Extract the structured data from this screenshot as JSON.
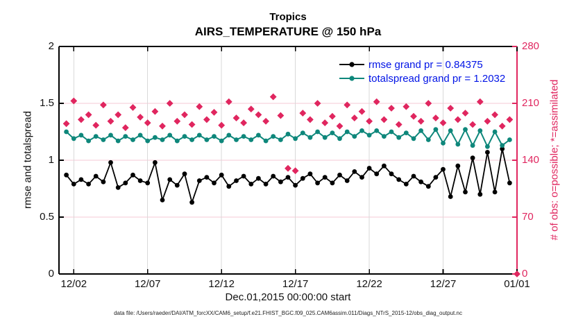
{
  "figure": {
    "title_line1": "Tropics",
    "title_line2": "AIRS_TEMPERATURE @ 150 hPa",
    "xlabel": "Dec.01,2015 00:00:00 start",
    "ylabel_left": "rmse and totalspread",
    "ylabel_right": "# of obs: o=possible; *=assimilated",
    "footer": "data file: /Users/raeder/DAI/ATM_forcXX/CAM6_setup/f.e21.FHIST_BGC.f09_025.CAM6assim.011/Diags_NTrS_2015-12/obs_diag_output.nc"
  },
  "legend": [
    {
      "label": "rmse grand pr = 0.84375",
      "color": "#000000"
    },
    {
      "label": "totalspread grand pr = 1.2032",
      "color": "#0e877b"
    }
  ],
  "colors": {
    "rmse": "#000000",
    "totalspread": "#0e877b",
    "obs": "#e0265f",
    "legend_text": "#0013e6",
    "grid_horizontal": "#f6c9d4",
    "grid_vertical": "#d9d9d9",
    "axis_left": "#000000",
    "axis_right": "#e0265f"
  },
  "chart_data": {
    "type": "line",
    "title": "Tropics — AIRS_TEMPERATURE @ 150 hPa",
    "xlabel": "Dec.01,2015 00:00:00 start",
    "ylabel_left": "rmse and totalspread",
    "ylabel_right": "# of obs: o=possible; *=assimilated",
    "x_max_days": 31,
    "x_ticks": [
      {
        "day": 1,
        "label": "12/02"
      },
      {
        "day": 6,
        "label": "12/07"
      },
      {
        "day": 11,
        "label": "12/12"
      },
      {
        "day": 16,
        "label": "12/17"
      },
      {
        "day": 21,
        "label": "12/22"
      },
      {
        "day": 26,
        "label": "12/27"
      },
      {
        "day": 31,
        "label": "01/01"
      }
    ],
    "left_axis": {
      "min": 0,
      "max": 2,
      "ticks": [
        0,
        0.5,
        1,
        1.5,
        2
      ],
      "tick_labels": [
        "0",
        "0.5",
        "1",
        "1.5",
        "2"
      ],
      "gridlines": [
        0.5,
        1,
        1.5
      ]
    },
    "right_axis": {
      "min": 0,
      "max": 280,
      "ticks": [
        0,
        70,
        140,
        210,
        280
      ],
      "tick_labels": [
        "0",
        "70",
        "140",
        "210",
        "280"
      ]
    },
    "x_days": [
      0.5,
      1,
      1.5,
      2,
      2.5,
      3,
      3.5,
      4,
      4.5,
      5,
      5.5,
      6,
      6.5,
      7,
      7.5,
      8,
      8.5,
      9,
      9.5,
      10,
      10.5,
      11,
      11.5,
      12,
      12.5,
      13,
      13.5,
      14,
      14.5,
      15,
      15.5,
      16,
      16.5,
      17,
      17.5,
      18,
      18.5,
      19,
      19.5,
      20,
      20.5,
      21,
      21.5,
      22,
      22.5,
      23,
      23.5,
      24,
      24.5,
      25,
      25.5,
      26,
      26.5,
      27,
      27.5,
      28,
      28.5,
      29,
      29.5,
      30,
      30.5
    ],
    "x_days_obs": [
      0.5,
      1,
      1.5,
      2,
      2.5,
      3,
      3.5,
      4,
      4.5,
      5,
      5.5,
      6,
      6.5,
      7,
      7.5,
      8,
      8.5,
      9,
      9.5,
      10,
      10.5,
      11,
      11.5,
      12,
      12.5,
      13,
      13.5,
      14,
      14.5,
      15,
      15.5,
      16,
      16.5,
      17,
      17.5,
      18,
      18.5,
      19,
      19.5,
      20,
      20.5,
      21,
      21.5,
      22,
      22.5,
      23,
      23.5,
      24,
      24.5,
      25,
      25.5,
      26,
      26.5,
      27,
      27.5,
      28,
      28.5,
      29,
      29.5,
      30,
      30.5,
      31
    ],
    "series": [
      {
        "name": "rmse",
        "axis": "left",
        "marker": "circle",
        "color": "#000000",
        "grand_mean": 0.84375,
        "values": [
          0.87,
          0.79,
          0.83,
          0.79,
          0.86,
          0.81,
          0.98,
          0.76,
          0.8,
          0.87,
          0.82,
          0.8,
          0.98,
          0.65,
          0.83,
          0.78,
          0.88,
          0.63,
          0.82,
          0.85,
          0.8,
          0.87,
          0.77,
          0.82,
          0.86,
          0.79,
          0.84,
          0.79,
          0.86,
          0.81,
          0.85,
          0.78,
          0.84,
          0.88,
          0.8,
          0.85,
          0.8,
          0.87,
          0.82,
          0.9,
          0.85,
          0.93,
          0.88,
          0.95,
          0.88,
          0.83,
          0.79,
          0.86,
          0.81,
          0.77,
          0.85,
          0.92,
          0.68,
          0.95,
          0.72,
          1.02,
          0.7,
          1.07,
          0.72,
          1.1,
          0.8
        ]
      },
      {
        "name": "totalspread",
        "axis": "left",
        "marker": "circle",
        "color": "#0e877b",
        "grand_mean": 1.2032,
        "values": [
          1.25,
          1.19,
          1.22,
          1.17,
          1.21,
          1.18,
          1.22,
          1.17,
          1.21,
          1.18,
          1.22,
          1.17,
          1.2,
          1.18,
          1.22,
          1.17,
          1.21,
          1.18,
          1.22,
          1.18,
          1.21,
          1.17,
          1.22,
          1.18,
          1.21,
          1.18,
          1.22,
          1.17,
          1.21,
          1.18,
          1.23,
          1.19,
          1.24,
          1.2,
          1.25,
          1.2,
          1.24,
          1.19,
          1.25,
          1.21,
          1.26,
          1.22,
          1.26,
          1.21,
          1.25,
          1.2,
          1.24,
          1.19,
          1.26,
          1.18,
          1.27,
          1.15,
          1.26,
          1.14,
          1.27,
          1.13,
          1.26,
          1.12,
          1.25,
          1.13,
          1.18
        ]
      },
      {
        "name": "obs_possible",
        "axis": "right",
        "marker": "diamond",
        "color": "#e0265f",
        "values": [
          185,
          213,
          190,
          196,
          183,
          208,
          188,
          196,
          180,
          205,
          193,
          186,
          200,
          182,
          210,
          188,
          196,
          184,
          206,
          190,
          199,
          183,
          212,
          192,
          186,
          203,
          196,
          188,
          218,
          195,
          130,
          127,
          198,
          190,
          210,
          186,
          194,
          182,
          208,
          192,
          200,
          188,
          212,
          190,
          204,
          184,
          206,
          194,
          188,
          210,
          192,
          186,
          204,
          190,
          198,
          184,
          212,
          188,
          196,
          182,
          190,
          0
        ]
      },
      {
        "name": "obs_assimilated",
        "axis": "right",
        "marker": "diamond",
        "color": "#e0265f",
        "values": [
          185,
          213,
          190,
          196,
          183,
          208,
          188,
          196,
          180,
          205,
          193,
          186,
          200,
          182,
          210,
          188,
          196,
          184,
          206,
          190,
          199,
          183,
          212,
          192,
          186,
          203,
          196,
          188,
          218,
          195,
          130,
          127,
          198,
          190,
          210,
          186,
          194,
          182,
          208,
          192,
          200,
          188,
          212,
          190,
          204,
          184,
          206,
          194,
          188,
          210,
          192,
          186,
          204,
          190,
          198,
          184,
          212,
          188,
          196,
          182,
          190,
          0
        ]
      }
    ],
    "legend_entries": [
      "rmse grand pr = 0.84375",
      "totalspread grand pr = 1.2032"
    ],
    "grid": "on",
    "legend_position": "upper-right-inside"
  }
}
